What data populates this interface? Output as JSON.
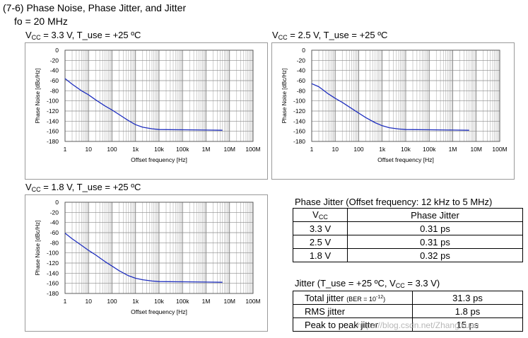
{
  "heading": {
    "title": "(7-6) Phase Noise, Phase Jitter, and Jitter",
    "subtitle": "fo = 20 MHz"
  },
  "axis_labels": {
    "xlabel": "Offset frequency [Hz]",
    "ylabel": "Phase Noise [dBc/Hz]"
  },
  "chart_data": [
    {
      "type": "line",
      "vcc_label": "V",
      "vcc_sub": "CC",
      "condition": " = 3.3 V, T_use = +25 ºC",
      "xlabel": "Offset frequency [Hz]",
      "ylabel": "Phase Noise [dBc/Hz]",
      "xscale": "log",
      "xlim": [
        1,
        100000000
      ],
      "ylim": [
        -180,
        0
      ],
      "xticks": [
        "1",
        "10",
        "100",
        "1k",
        "10k",
        "100k",
        "1M",
        "10M",
        "100M"
      ],
      "yticks": [
        "0",
        "-20",
        "-40",
        "-60",
        "-80",
        "-100",
        "-120",
        "-140",
        "-160",
        "-180"
      ],
      "grid": true,
      "series": [
        {
          "color": "#1f2fbf",
          "x": [
            1,
            2,
            5,
            10,
            20,
            50,
            100,
            200,
            500,
            1000,
            2000,
            5000,
            10000,
            100000,
            1000000,
            5000000
          ],
          "y": [
            -56,
            -67,
            -80,
            -88,
            -98,
            -110,
            -118,
            -127,
            -139,
            -147,
            -152,
            -155,
            -156.5,
            -157,
            -157.5,
            -158
          ]
        }
      ]
    },
    {
      "type": "line",
      "vcc_label": "V",
      "vcc_sub": "CC",
      "condition": " = 2.5 V, T_use = +25 ºC",
      "xlabel": "Offset frequency [Hz]",
      "ylabel": "Phase Noise [dBc/Hz]",
      "xscale": "log",
      "xlim": [
        1,
        100000000
      ],
      "ylim": [
        -180,
        0
      ],
      "xticks": [
        "1",
        "10",
        "100",
        "1k",
        "10k",
        "100k",
        "1M",
        "10M",
        "100M"
      ],
      "yticks": [
        "0",
        "-20",
        "-40",
        "-60",
        "-80",
        "-100",
        "-120",
        "-140",
        "-160",
        "-180"
      ],
      "grid": true,
      "series": [
        {
          "color": "#1f2fbf",
          "x": [
            1,
            2,
            5,
            10,
            20,
            50,
            100,
            200,
            500,
            1000,
            2000,
            5000,
            10000,
            100000,
            1000000,
            5000000
          ],
          "y": [
            -66,
            -72,
            -86,
            -95,
            -103,
            -115,
            -124,
            -133,
            -143,
            -149,
            -153,
            -155.5,
            -156.5,
            -157,
            -157.5,
            -158
          ]
        }
      ]
    },
    {
      "type": "line",
      "vcc_label": "V",
      "vcc_sub": "CC",
      "condition": " = 1.8 V, T_use = +25 ºC",
      "xlabel": "Offset frequency [Hz]",
      "ylabel": "Phase Noise [dBc/Hz]",
      "xscale": "log",
      "xlim": [
        1,
        100000000
      ],
      "ylim": [
        -180,
        0
      ],
      "xticks": [
        "1",
        "10",
        "100",
        "1k",
        "10k",
        "100k",
        "1M",
        "10M",
        "100M"
      ],
      "yticks": [
        "0",
        "-20",
        "-40",
        "-60",
        "-80",
        "-100",
        "-120",
        "-140",
        "-160",
        "-180"
      ],
      "grid": true,
      "series": [
        {
          "color": "#1f2fbf",
          "x": [
            1,
            2,
            5,
            10,
            20,
            50,
            100,
            200,
            500,
            1000,
            2000,
            5000,
            10000,
            100000,
            1000000,
            5000000
          ],
          "y": [
            -61,
            -72,
            -85,
            -95,
            -104,
            -117,
            -126,
            -135,
            -145,
            -150,
            -153,
            -155.5,
            -156.5,
            -157,
            -157.5,
            -158
          ]
        }
      ]
    }
  ],
  "phase_jitter_table": {
    "caption": "Phase Jitter (Offset frequency: 12 kHz to 5 MHz)",
    "col_vcc": "V",
    "col_vcc_sub": "CC",
    "col_jitter": "Phase Jitter",
    "rows": [
      {
        "vcc": "3.3 V",
        "jitter": "0.31 ps"
      },
      {
        "vcc": "2.5 V",
        "jitter": "0.31 ps"
      },
      {
        "vcc": "1.8 V",
        "jitter": "0.32 ps"
      }
    ]
  },
  "jitter_table": {
    "caption_a": "Jitter (T_use = +25 ºC, V",
    "caption_sub": "CC",
    "caption_b": " = 3.3 V)",
    "rows": [
      {
        "name": "Total jitter",
        "note": "(BER = 10",
        "note_exp": "-12",
        "note_end": ")",
        "value": "31.3 ps"
      },
      {
        "name": "RMS jitter",
        "value": "1.8 ps"
      },
      {
        "name": "Peak to peak jitter",
        "value": "15 ps"
      }
    ]
  },
  "watermark": "https://blog.csdn.net/ZhangXuan"
}
